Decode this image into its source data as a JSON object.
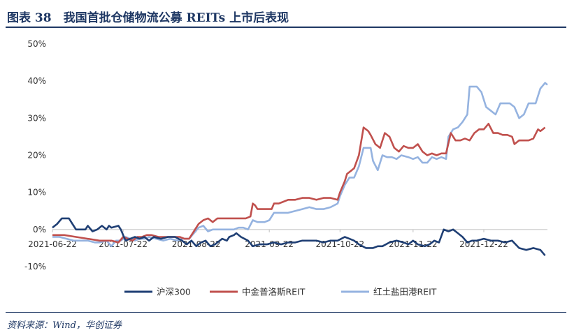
{
  "figure": {
    "title": "图表 38　我国首批仓储物流公募 REITs 上市后表现",
    "source": "资料来源：Wind，华创证券"
  },
  "chart_data": {
    "type": "line",
    "ylim": [
      -10,
      50
    ],
    "y_ticks": [
      "50%",
      "40%",
      "30%",
      "20%",
      "10%",
      "0%",
      "-10%"
    ],
    "y_tick_values": [
      50,
      40,
      30,
      20,
      10,
      0,
      -10
    ],
    "x_ticks": [
      "2021-06-22",
      "2021-07-22",
      "2021-08-22",
      "2021-09-22",
      "2021-10-22",
      "2021-11-22",
      "2021-12-22"
    ],
    "x_tick_days": [
      0,
      30,
      61,
      92,
      122,
      153,
      183
    ],
    "x_range_days": [
      0,
      210
    ],
    "legend_position": "bottom",
    "grid": false,
    "series": [
      {
        "name": "沪深300",
        "color": "#1f3f74",
        "points": [
          [
            0,
            0.5
          ],
          [
            2,
            1.5
          ],
          [
            4,
            3
          ],
          [
            7,
            3
          ],
          [
            9,
            1
          ],
          [
            10,
            0
          ],
          [
            14,
            0
          ],
          [
            15,
            1
          ],
          [
            17,
            -0.5
          ],
          [
            19,
            0
          ],
          [
            21,
            1
          ],
          [
            23,
            0
          ],
          [
            24,
            1
          ],
          [
            25,
            0.5
          ],
          [
            28,
            1
          ],
          [
            29,
            0
          ],
          [
            31,
            -3
          ],
          [
            33,
            -2.5
          ],
          [
            35,
            -2
          ],
          [
            37,
            -2.5
          ],
          [
            39,
            -2
          ],
          [
            41,
            -3
          ],
          [
            43,
            -2
          ],
          [
            46,
            -2.5
          ],
          [
            49,
            -2
          ],
          [
            52,
            -2
          ],
          [
            55,
            -3
          ],
          [
            57,
            -4
          ],
          [
            59,
            -3
          ],
          [
            61,
            -4.5
          ],
          [
            63,
            -3.5
          ],
          [
            65,
            -3
          ],
          [
            67,
            -4.5
          ],
          [
            69,
            -4
          ],
          [
            72,
            -2.5
          ],
          [
            74,
            -3
          ],
          [
            75,
            -2
          ],
          [
            77,
            -1.5
          ],
          [
            78,
            -1
          ],
          [
            80,
            -2
          ],
          [
            83,
            -3
          ],
          [
            85,
            -4.5
          ],
          [
            88,
            -4
          ],
          [
            91,
            -4
          ],
          [
            94,
            -3.5
          ],
          [
            97,
            -4
          ],
          [
            100,
            -3.5
          ],
          [
            103,
            -3.5
          ],
          [
            106,
            -3
          ],
          [
            109,
            -3
          ],
          [
            112,
            -3
          ],
          [
            115,
            -3.5
          ],
          [
            118,
            -3
          ],
          [
            121,
            -3
          ],
          [
            124,
            -2
          ],
          [
            126,
            -2.5
          ],
          [
            128,
            -3
          ],
          [
            130,
            -4
          ],
          [
            133,
            -5
          ],
          [
            136,
            -5
          ],
          [
            138,
            -4.5
          ],
          [
            140,
            -4.5
          ],
          [
            143,
            -3.5
          ],
          [
            146,
            -3
          ],
          [
            149,
            -3.5
          ],
          [
            151,
            -4
          ],
          [
            153,
            -3
          ],
          [
            155,
            -4
          ],
          [
            158,
            -4.5
          ],
          [
            160,
            -4
          ],
          [
            162,
            -3
          ],
          [
            164,
            -3.5
          ],
          [
            166,
            0
          ],
          [
            168,
            -0.5
          ],
          [
            170,
            0
          ],
          [
            172,
            -1
          ],
          [
            174,
            -2
          ],
          [
            176,
            -3.5
          ],
          [
            178,
            -3
          ],
          [
            180,
            -3
          ],
          [
            183,
            -2.5
          ],
          [
            186,
            -3
          ],
          [
            189,
            -3
          ],
          [
            192,
            -3.5
          ],
          [
            195,
            -3
          ],
          [
            198,
            -5
          ],
          [
            201,
            -5.5
          ],
          [
            204,
            -5
          ],
          [
            207,
            -5.5
          ],
          [
            209,
            -7
          ]
        ]
      },
      {
        "name": "中金普洛斯REIT",
        "color": "#c0504d",
        "points": [
          [
            0,
            -1.5
          ],
          [
            5,
            -1.5
          ],
          [
            10,
            -2
          ],
          [
            15,
            -2.5
          ],
          [
            20,
            -3
          ],
          [
            25,
            -3
          ],
          [
            28,
            -3.5
          ],
          [
            30,
            -2
          ],
          [
            32,
            -2.5
          ],
          [
            34,
            -3
          ],
          [
            36,
            -2
          ],
          [
            38,
            -2
          ],
          [
            40,
            -1.5
          ],
          [
            42,
            -1.5
          ],
          [
            45,
            -2
          ],
          [
            48,
            -2
          ],
          [
            51,
            -2
          ],
          [
            54,
            -2
          ],
          [
            56,
            -2.5
          ],
          [
            58,
            -2.5
          ],
          [
            60,
            -0.5
          ],
          [
            62,
            1.5
          ],
          [
            64,
            2.5
          ],
          [
            66,
            3
          ],
          [
            68,
            2
          ],
          [
            70,
            3
          ],
          [
            75,
            3
          ],
          [
            79,
            3
          ],
          [
            82,
            3
          ],
          [
            84,
            3.5
          ],
          [
            85,
            7
          ],
          [
            86,
            6.5
          ],
          [
            87,
            5.5
          ],
          [
            90,
            5.5
          ],
          [
            93,
            5.5
          ],
          [
            94,
            7
          ],
          [
            96,
            7
          ],
          [
            98,
            7.5
          ],
          [
            100,
            8
          ],
          [
            103,
            8
          ],
          [
            106,
            8.5
          ],
          [
            109,
            8.5
          ],
          [
            112,
            8
          ],
          [
            115,
            8.5
          ],
          [
            118,
            8.5
          ],
          [
            121,
            8
          ],
          [
            122,
            10
          ],
          [
            124,
            13
          ],
          [
            125,
            15
          ],
          [
            127,
            16
          ],
          [
            128,
            16.5
          ],
          [
            130,
            20
          ],
          [
            132,
            27.5
          ],
          [
            134,
            26.5
          ],
          [
            135,
            25.5
          ],
          [
            137,
            23
          ],
          [
            139,
            22
          ],
          [
            141,
            26
          ],
          [
            143,
            25
          ],
          [
            145,
            22
          ],
          [
            147,
            21
          ],
          [
            149,
            22.5
          ],
          [
            151,
            22
          ],
          [
            153,
            22
          ],
          [
            155,
            23
          ],
          [
            157,
            21
          ],
          [
            159,
            20
          ],
          [
            161,
            20.5
          ],
          [
            163,
            20
          ],
          [
            165,
            20.5
          ],
          [
            167,
            20.5
          ],
          [
            169,
            26
          ],
          [
            171,
            24
          ],
          [
            173,
            24
          ],
          [
            175,
            24.5
          ],
          [
            177,
            24
          ],
          [
            179,
            26
          ],
          [
            181,
            27
          ],
          [
            183,
            27
          ],
          [
            185,
            28.5
          ],
          [
            187,
            26
          ],
          [
            189,
            26
          ],
          [
            191,
            25.5
          ],
          [
            193,
            25.5
          ],
          [
            195,
            25
          ],
          [
            196,
            23
          ],
          [
            198,
            24
          ],
          [
            200,
            24
          ],
          [
            202,
            24
          ],
          [
            204,
            24.5
          ],
          [
            206,
            27
          ],
          [
            207,
            26.5
          ],
          [
            208,
            27
          ],
          [
            209,
            27.5
          ]
        ]
      },
      {
        "name": "红土盐田港REIT",
        "color": "#95b3e0",
        "points": [
          [
            0,
            -2
          ],
          [
            3,
            -2
          ],
          [
            6,
            -2.5
          ],
          [
            9,
            -3
          ],
          [
            12,
            -3
          ],
          [
            15,
            -3
          ],
          [
            18,
            -3.5
          ],
          [
            20,
            -3.5
          ],
          [
            23,
            -3
          ],
          [
            25,
            -4.5
          ],
          [
            27,
            -3
          ],
          [
            29,
            -3
          ],
          [
            31,
            -2
          ],
          [
            33,
            -2.5
          ],
          [
            35,
            -3
          ],
          [
            37,
            -2.5
          ],
          [
            39,
            -2.5
          ],
          [
            41,
            -2
          ],
          [
            44,
            -2.5
          ],
          [
            47,
            -3
          ],
          [
            50,
            -2.5
          ],
          [
            53,
            -3
          ],
          [
            55,
            -2.5
          ],
          [
            58,
            -2.5
          ],
          [
            60,
            -1
          ],
          [
            62,
            0.5
          ],
          [
            64,
            1
          ],
          [
            66,
            -0.5
          ],
          [
            68,
            0
          ],
          [
            71,
            0
          ],
          [
            74,
            0
          ],
          [
            77,
            0
          ],
          [
            79,
            0.5
          ],
          [
            81,
            0.5
          ],
          [
            83,
            0
          ],
          [
            85,
            2.5
          ],
          [
            87,
            2
          ],
          [
            90,
            2
          ],
          [
            92,
            2.5
          ],
          [
            94,
            4.5
          ],
          [
            97,
            4.5
          ],
          [
            100,
            4.5
          ],
          [
            103,
            5
          ],
          [
            106,
            5.5
          ],
          [
            109,
            6
          ],
          [
            112,
            5.5
          ],
          [
            115,
            5.5
          ],
          [
            118,
            6
          ],
          [
            121,
            7
          ],
          [
            122,
            9
          ],
          [
            124,
            12
          ],
          [
            126,
            14
          ],
          [
            128,
            14
          ],
          [
            130,
            17
          ],
          [
            132,
            22
          ],
          [
            135,
            22
          ],
          [
            136,
            18.5
          ],
          [
            138,
            16
          ],
          [
            140,
            20
          ],
          [
            142,
            19.5
          ],
          [
            144,
            19.5
          ],
          [
            146,
            19
          ],
          [
            148,
            20
          ],
          [
            151,
            19.5
          ],
          [
            153,
            19
          ],
          [
            155,
            19.5
          ],
          [
            157,
            18
          ],
          [
            159,
            18
          ],
          [
            161,
            19.5
          ],
          [
            163,
            19
          ],
          [
            165,
            19.5
          ],
          [
            167,
            19
          ],
          [
            168,
            25
          ],
          [
            170,
            27
          ],
          [
            172,
            27.5
          ],
          [
            174,
            29
          ],
          [
            176,
            31
          ],
          [
            177,
            38.5
          ],
          [
            180,
            38.5
          ],
          [
            182,
            37
          ],
          [
            184,
            33
          ],
          [
            186,
            32
          ],
          [
            188,
            31
          ],
          [
            190,
            34
          ],
          [
            192,
            34
          ],
          [
            194,
            34
          ],
          [
            196,
            33
          ],
          [
            198,
            30
          ],
          [
            200,
            31
          ],
          [
            202,
            34
          ],
          [
            204,
            34
          ],
          [
            205,
            34
          ],
          [
            207,
            38
          ],
          [
            209,
            39.5
          ],
          [
            210,
            39
          ]
        ]
      }
    ]
  }
}
